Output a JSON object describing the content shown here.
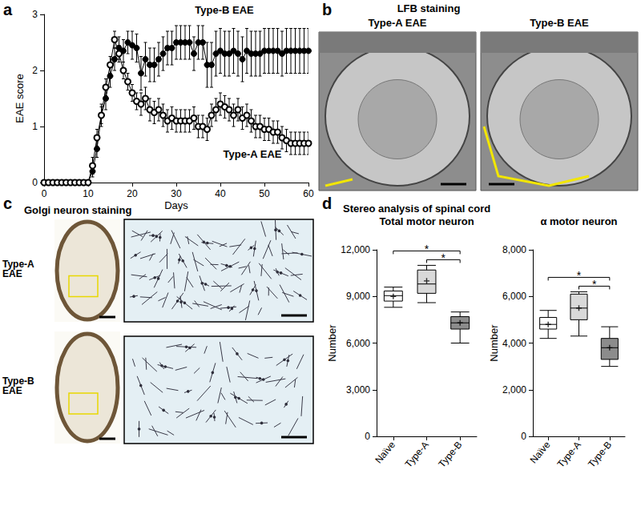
{
  "panel_labels": [
    "a",
    "b",
    "c",
    "d"
  ],
  "chart_data": [
    {
      "type": "line",
      "x_label": "Days",
      "y_label": "EAE score",
      "x": [
        0,
        1,
        2,
        3,
        4,
        5,
        6,
        7,
        8,
        9,
        10,
        11,
        12,
        13,
        14,
        15,
        16,
        17,
        18,
        19,
        20,
        21,
        22,
        23,
        24,
        25,
        26,
        27,
        28,
        29,
        30,
        31,
        32,
        33,
        34,
        35,
        36,
        37,
        38,
        39,
        40,
        41,
        42,
        43,
        44,
        45,
        46,
        47,
        48,
        49,
        50,
        51,
        52,
        53,
        54,
        55,
        56,
        57,
        58,
        59,
        60
      ],
      "xlim": [
        0,
        60
      ],
      "xticks": [
        0,
        10,
        20,
        30,
        40,
        50,
        60
      ],
      "ylim": [
        0,
        3
      ],
      "yticks": [
        0,
        1,
        2,
        3
      ],
      "grid": false,
      "series": [
        {
          "name": "Type-B EAE",
          "color": "#000000",
          "marker": "circle",
          "values": [
            0,
            0,
            0,
            0,
            0,
            0,
            0,
            0,
            0,
            0,
            0,
            0.2,
            0.6,
            1.2,
            1.5,
            1.9,
            2.2,
            2.4,
            2.35,
            2.5,
            2.45,
            2.4,
            1.95,
            2.2,
            2.1,
            2.1,
            2.2,
            2.3,
            2.4,
            2.4,
            2.5,
            2.5,
            2.5,
            2.5,
            2.3,
            2.5,
            2.5,
            2.1,
            2.1,
            2.3,
            2.35,
            2.3,
            2.3,
            2.35,
            2.3,
            2.2,
            2.35,
            2.3,
            2.3,
            2.3,
            2.35,
            2.35,
            2.35,
            2.35,
            2.3,
            2.35,
            2.35,
            2.35,
            2.35,
            2.35,
            2.35
          ],
          "errors": [
            0,
            0,
            0,
            0,
            0,
            0,
            0,
            0,
            0,
            0,
            0,
            0.1,
            0.15,
            0.2,
            0.2,
            0.2,
            0.2,
            0.2,
            0.2,
            0.2,
            0.25,
            0.25,
            0.3,
            0.3,
            0.3,
            0.3,
            0.3,
            0.3,
            0.3,
            0.3,
            0.3,
            0.3,
            0.3,
            0.3,
            0.3,
            0.3,
            0.3,
            0.4,
            0.4,
            0.4,
            0.4,
            0.4,
            0.4,
            0.4,
            0.4,
            0.4,
            0.4,
            0.4,
            0.4,
            0.4,
            0.4,
            0.4,
            0.4,
            0.4,
            0.4,
            0.4,
            0.4,
            0.4,
            0.4,
            0.4,
            0.4
          ]
        },
        {
          "name": "Type-A EAE",
          "color": "#000000",
          "marker": "emptyCircle",
          "values": [
            0,
            0,
            0,
            0,
            0,
            0,
            0,
            0,
            0,
            0,
            0,
            0.3,
            0.8,
            1.2,
            1.7,
            2.1,
            2.55,
            2.3,
            2.0,
            1.8,
            1.6,
            1.45,
            1.4,
            1.5,
            1.3,
            1.25,
            1.3,
            1.2,
            1.1,
            1.15,
            1.1,
            1.1,
            1.1,
            1.1,
            1.15,
            1.0,
            1.0,
            0.95,
            1.2,
            1.3,
            1.4,
            1.35,
            1.3,
            1.2,
            1.3,
            1.15,
            1.2,
            1.1,
            1.0,
            1.0,
            0.95,
            0.95,
            0.9,
            0.9,
            0.8,
            0.75,
            0.7,
            0.7,
            0.7,
            0.7,
            0.7
          ],
          "errors": [
            0,
            0,
            0,
            0,
            0,
            0,
            0,
            0,
            0,
            0,
            0,
            0.15,
            0.15,
            0.15,
            0.15,
            0.15,
            0.15,
            0.15,
            0.15,
            0.15,
            0.15,
            0.15,
            0.2,
            0.2,
            0.2,
            0.2,
            0.2,
            0.2,
            0.2,
            0.2,
            0.2,
            0.2,
            0.2,
            0.2,
            0.2,
            0.2,
            0.2,
            0.2,
            0.2,
            0.2,
            0.2,
            0.2,
            0.2,
            0.2,
            0.2,
            0.2,
            0.2,
            0.2,
            0.2,
            0.2,
            0.2,
            0.2,
            0.2,
            0.2,
            0.2,
            0.2,
            0.2,
            0.2,
            0.2,
            0.2,
            0.2
          ]
        }
      ]
    },
    {
      "type": "boxplot",
      "title": "Total motor neuron",
      "y_label": "Number",
      "categories": [
        "Naïve",
        "Type-A",
        "Type-B"
      ],
      "boxes": [
        [
          8300,
          8700,
          9050,
          9350,
          9600
        ],
        [
          8600,
          9200,
          9800,
          10700,
          11000
        ],
        [
          6000,
          6900,
          7300,
          7700,
          8000
        ]
      ],
      "means": [
        9000,
        10000,
        7300
      ],
      "colors": [
        "#ffffff",
        "#d9d9d9",
        "#8c8c8c"
      ],
      "ylim": [
        0,
        12000
      ],
      "yticks": [
        0,
        3000,
        6000,
        9000,
        12000
      ],
      "grid": false,
      "significance": [
        {
          "from": "Naïve",
          "to": "Type-B",
          "label": "*"
        },
        {
          "from": "Type-A",
          "to": "Type-B",
          "label": "*"
        }
      ]
    },
    {
      "type": "boxplot",
      "title": "α motor neuron",
      "y_label": "Number",
      "categories": [
        "Naïve",
        "Type-A",
        "Type-B"
      ],
      "boxes": [
        [
          4200,
          4600,
          4800,
          5100,
          5400
        ],
        [
          4300,
          5000,
          5500,
          6100,
          6200
        ],
        [
          3000,
          3300,
          3800,
          4200,
          4700
        ]
      ],
      "means": [
        4800,
        5500,
        3800
      ],
      "colors": [
        "#ffffff",
        "#d9d9d9",
        "#8c8c8c"
      ],
      "ylim": [
        0,
        8000
      ],
      "yticks": [
        0,
        2000,
        4000,
        6000,
        8000
      ],
      "grid": false,
      "significance": [
        {
          "from": "Naïve",
          "to": "Type-B",
          "label": "*"
        },
        {
          "from": "Type-A",
          "to": "Type-B",
          "label": "*"
        }
      ]
    }
  ],
  "panel_b": {
    "title": "LFB staining",
    "images": [
      "Type-A EAE",
      "Type-B EAE"
    ]
  },
  "panel_c": {
    "title": "Golgi neuron staining",
    "rows": [
      "Type-A EAE",
      "Type-B EAE"
    ]
  },
  "panel_d": {
    "title": "Stereo analysis of spinal cord"
  }
}
